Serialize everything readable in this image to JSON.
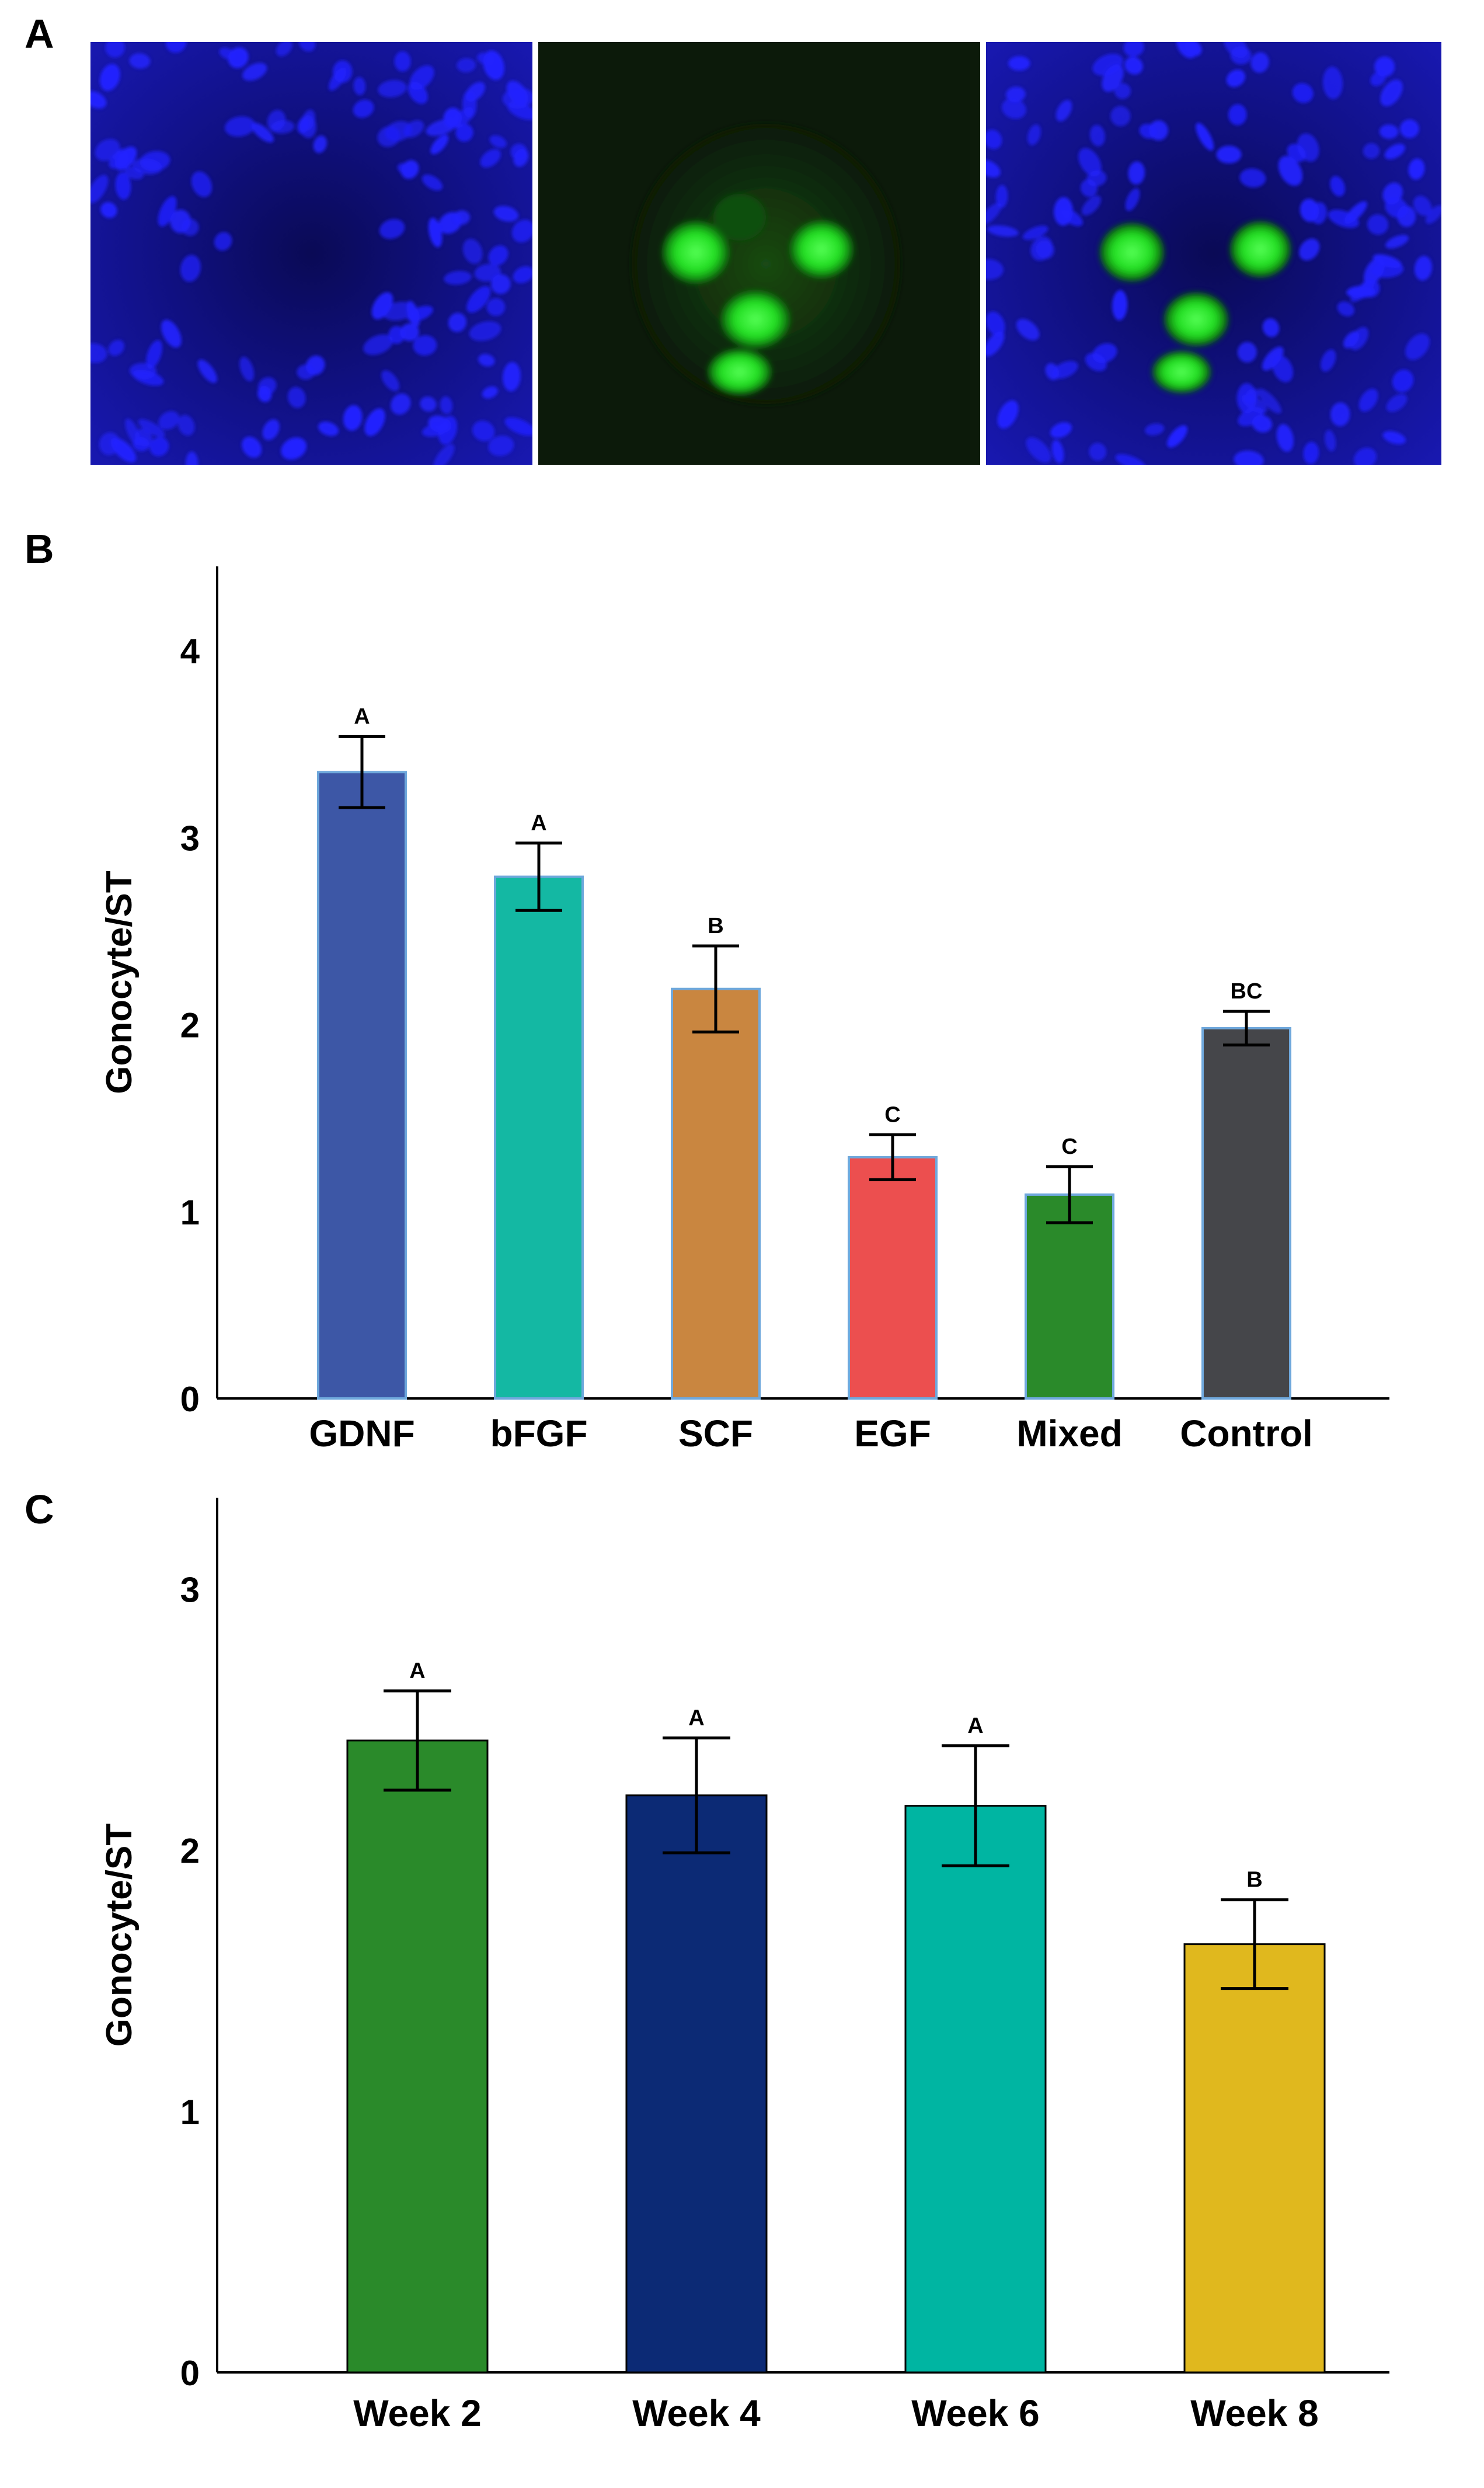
{
  "panels": {
    "a": {
      "label": "A"
    },
    "b": {
      "label": "B"
    },
    "c": {
      "label": "C"
    }
  },
  "images": [
    {
      "name": "nuclear stain",
      "color": "#1a1aff"
    },
    {
      "name": "green marker",
      "color": "#22dd22"
    },
    {
      "name": "merge",
      "color": "#1a1aff"
    }
  ],
  "chart_data": [
    {
      "type": "bar",
      "panel": "B",
      "categories": [
        "GDNF",
        "bFGF",
        "SCF",
        "EGF",
        "Mixed",
        "Control"
      ],
      "values": [
        3.35,
        2.79,
        2.19,
        1.29,
        1.09,
        1.98
      ],
      "errors": [
        0.19,
        0.18,
        0.23,
        0.12,
        0.15,
        0.09
      ],
      "significance": [
        "A",
        "A",
        "B",
        "C",
        "C",
        "BC"
      ],
      "colors": [
        "#3d57a6",
        "#14b8a3",
        "#c98640",
        "#ec4f4f",
        "#2a8a2a",
        "#45464a"
      ],
      "title": "",
      "xlabel": "",
      "ylabel": "Gonocyte/ST",
      "ylim": [
        0,
        4.45
      ],
      "yticks": [
        0,
        1,
        2,
        3,
        4
      ],
      "grid": false
    },
    {
      "type": "bar",
      "panel": "C",
      "categories": [
        "Week 2",
        "Week 4",
        "Week 6",
        "Week 8"
      ],
      "values": [
        2.42,
        2.21,
        2.17,
        1.64
      ],
      "errors": [
        0.19,
        0.22,
        0.23,
        0.17
      ],
      "significance": [
        "A",
        "A",
        "A",
        "B"
      ],
      "colors": [
        "#2a8a2a",
        "#0c2a75",
        "#00b5a2",
        "#e0b81e"
      ],
      "title": "",
      "xlabel": "",
      "ylabel": "Gonocyte/ST",
      "ylim": [
        0,
        3.35
      ],
      "yticks": [
        0,
        1,
        2,
        3
      ],
      "grid": false
    }
  ]
}
